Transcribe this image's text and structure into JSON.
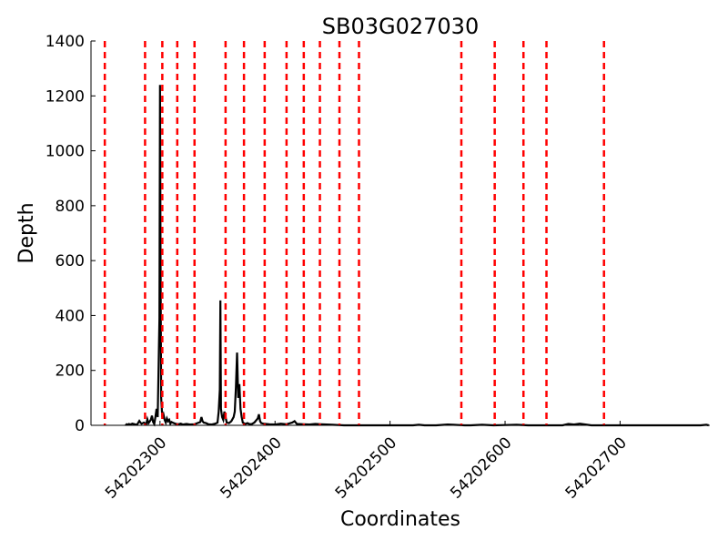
{
  "chart_data": {
    "type": "line",
    "title": "SB03G027030",
    "xlabel": "Coordinates",
    "ylabel": "Depth",
    "xlim": [
      54202240,
      54202778
    ],
    "ylim": [
      0,
      1400
    ],
    "x_ticks": [
      54202300,
      54202400,
      54202500,
      54202600,
      54202700
    ],
    "x_tick_labels": [
      "54202300",
      "54202400",
      "54202500",
      "54202600",
      "54202700"
    ],
    "y_ticks": [
      0,
      200,
      400,
      600,
      800,
      1000,
      1200,
      1400
    ],
    "y_tick_labels": [
      "0",
      "200",
      "400",
      "600",
      "800",
      "1000",
      "1200",
      "1400"
    ],
    "grid": false,
    "series": [
      {
        "color": "#000000",
        "style": "solid",
        "points": [
          [
            54202270,
            0
          ],
          [
            54202271,
            4
          ],
          [
            54202272,
            2
          ],
          [
            54202273,
            5
          ],
          [
            54202274,
            3
          ],
          [
            54202276,
            6
          ],
          [
            54202278,
            4
          ],
          [
            54202280,
            2
          ],
          [
            54202282,
            16
          ],
          [
            54202283,
            10
          ],
          [
            54202284,
            6
          ],
          [
            54202286,
            10
          ],
          [
            54202288,
            4
          ],
          [
            54202289,
            22
          ],
          [
            54202290,
            8
          ],
          [
            54202292,
            20
          ],
          [
            54202293,
            35
          ],
          [
            54202294,
            12
          ],
          [
            54202295,
            5
          ],
          [
            54202296,
            30
          ],
          [
            54202297,
            60
          ],
          [
            54202298,
            30
          ],
          [
            54202299,
            270
          ],
          [
            54202299.5,
            390
          ],
          [
            54202300,
            1240
          ],
          [
            54202300.5,
            590
          ],
          [
            54202301,
            100
          ],
          [
            54202302,
            30
          ],
          [
            54202303,
            40
          ],
          [
            54202304,
            20
          ],
          [
            54202305,
            10
          ],
          [
            54202306,
            25
          ],
          [
            54202307,
            15
          ],
          [
            54202308,
            20
          ],
          [
            54202309,
            6
          ],
          [
            54202310,
            12
          ],
          [
            54202312,
            8
          ],
          [
            54202314,
            5
          ],
          [
            54202316,
            4
          ],
          [
            54202318,
            6
          ],
          [
            54202320,
            3
          ],
          [
            54202323,
            5
          ],
          [
            54202326,
            3
          ],
          [
            54202330,
            4
          ],
          [
            54202335,
            12
          ],
          [
            54202336,
            30
          ],
          [
            54202337,
            15
          ],
          [
            54202338,
            10
          ],
          [
            54202340,
            8
          ],
          [
            54202342,
            4
          ],
          [
            54202345,
            3
          ],
          [
            54202348,
            6
          ],
          [
            54202350,
            10
          ],
          [
            54202351,
            50
          ],
          [
            54202352,
            130
          ],
          [
            54202352.5,
            455
          ],
          [
            54202353,
            60
          ],
          [
            54202354,
            30
          ],
          [
            54202355,
            20
          ],
          [
            54202356,
            50
          ],
          [
            54202357,
            30
          ],
          [
            54202358,
            10
          ],
          [
            54202360,
            8
          ],
          [
            54202362,
            15
          ],
          [
            54202364,
            30
          ],
          [
            54202365,
            50
          ],
          [
            54202366,
            140
          ],
          [
            54202367,
            265
          ],
          [
            54202368,
            100
          ],
          [
            54202369,
            150
          ],
          [
            54202370,
            60
          ],
          [
            54202371,
            30
          ],
          [
            54202372,
            10
          ],
          [
            54202374,
            5
          ],
          [
            54202376,
            8
          ],
          [
            54202378,
            4
          ],
          [
            54202380,
            5
          ],
          [
            54202382,
            10
          ],
          [
            54202385,
            25
          ],
          [
            54202386,
            40
          ],
          [
            54202387,
            15
          ],
          [
            54202388,
            8
          ],
          [
            54202390,
            6
          ],
          [
            54202395,
            4
          ],
          [
            54202400,
            3
          ],
          [
            54202405,
            6
          ],
          [
            54202410,
            4
          ],
          [
            54202415,
            10
          ],
          [
            54202417,
            15
          ],
          [
            54202419,
            5
          ],
          [
            54202425,
            4
          ],
          [
            54202430,
            3
          ],
          [
            54202435,
            5
          ],
          [
            54202440,
            4
          ],
          [
            54202445,
            3
          ],
          [
            54202450,
            2
          ],
          [
            54202455,
            1
          ],
          [
            54202460,
            0
          ],
          [
            54202470,
            0
          ],
          [
            54202480,
            0
          ],
          [
            54202490,
            0
          ],
          [
            54202500,
            0
          ],
          [
            54202510,
            0
          ],
          [
            54202520,
            0
          ],
          [
            54202525,
            2
          ],
          [
            54202530,
            0
          ],
          [
            54202540,
            0
          ],
          [
            54202550,
            3
          ],
          [
            54202555,
            2
          ],
          [
            54202560,
            1
          ],
          [
            54202565,
            0
          ],
          [
            54202570,
            0
          ],
          [
            54202580,
            2
          ],
          [
            54202590,
            0
          ],
          [
            54202600,
            1
          ],
          [
            54202610,
            2
          ],
          [
            54202620,
            0
          ],
          [
            54202630,
            0
          ],
          [
            54202640,
            0
          ],
          [
            54202650,
            0
          ],
          [
            54202655,
            5
          ],
          [
            54202660,
            3
          ],
          [
            54202665,
            6
          ],
          [
            54202670,
            3
          ],
          [
            54202675,
            0
          ],
          [
            54202690,
            0
          ],
          [
            54202700,
            0
          ],
          [
            54202720,
            0
          ],
          [
            54202740,
            0
          ],
          [
            54202760,
            0
          ],
          [
            54202770,
            0
          ],
          [
            54202775,
            2
          ],
          [
            54202777,
            0
          ]
        ]
      }
    ],
    "vlines": {
      "color": "#ff0000",
      "style": "dashed",
      "x": [
        54202252,
        54202287,
        54202302,
        54202315,
        54202330,
        54202357,
        54202373,
        54202391,
        54202410,
        54202425,
        54202439,
        54202456,
        54202473,
        54202562,
        54202591,
        54202616,
        54202636,
        54202686
      ]
    }
  }
}
